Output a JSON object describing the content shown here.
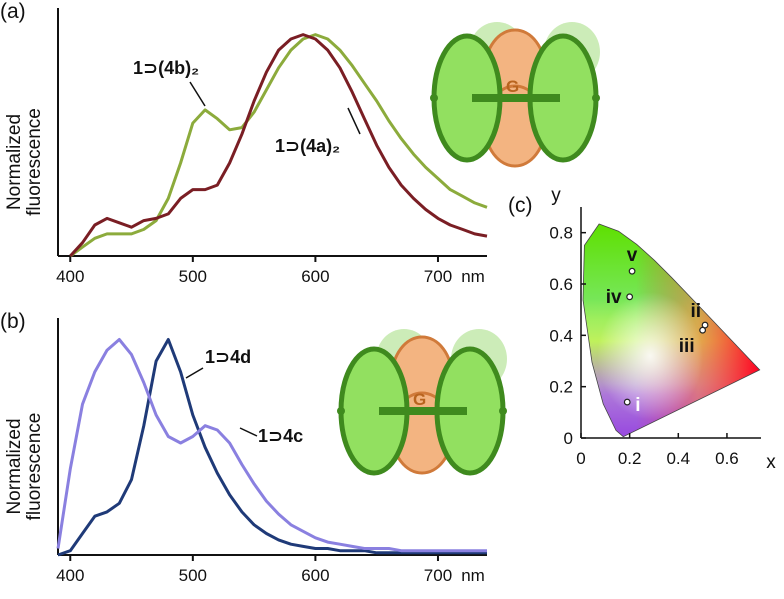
{
  "chart_data": [
    {
      "type": "line",
      "panel_label": "(a)",
      "y_label": [
        "Normalized",
        "fluorescence"
      ],
      "x_label": "nm",
      "inset_label": "G",
      "x": [
        400,
        410,
        420,
        430,
        440,
        450,
        460,
        470,
        480,
        490,
        500,
        510,
        520,
        530,
        540,
        550,
        560,
        570,
        580,
        590,
        600,
        610,
        620,
        630,
        640,
        650,
        660,
        670,
        680,
        690,
        700,
        710,
        720,
        730,
        740
      ],
      "xlim": [
        390,
        740
      ],
      "xticks": [
        400,
        500,
        600,
        700
      ],
      "ylim": [
        0,
        1.12
      ],
      "series": [
        {
          "name": "1⊃(4b)₂",
          "color": "#8cab3c",
          "values": [
            0,
            0.04,
            0.08,
            0.1,
            0.1,
            0.1,
            0.12,
            0.16,
            0.26,
            0.42,
            0.6,
            0.66,
            0.62,
            0.57,
            0.58,
            0.65,
            0.75,
            0.85,
            0.93,
            0.98,
            1.0,
            0.98,
            0.93,
            0.86,
            0.78,
            0.7,
            0.61,
            0.53,
            0.46,
            0.4,
            0.35,
            0.3,
            0.27,
            0.24,
            0.22
          ]
        },
        {
          "name": "1⊃(4a)₂",
          "color": "#7a1e24",
          "values": [
            0,
            0.06,
            0.14,
            0.17,
            0.15,
            0.13,
            0.16,
            0.17,
            0.19,
            0.26,
            0.3,
            0.3,
            0.32,
            0.42,
            0.55,
            0.7,
            0.83,
            0.93,
            0.98,
            1.0,
            0.98,
            0.93,
            0.85,
            0.74,
            0.62,
            0.5,
            0.4,
            0.32,
            0.26,
            0.21,
            0.17,
            0.14,
            0.12,
            0.1,
            0.09
          ]
        }
      ]
    },
    {
      "type": "line",
      "panel_label": "(b)",
      "y_label": [
        "Normalized",
        "fluorescence"
      ],
      "x_label": "nm",
      "inset_label": "G",
      "x": [
        390,
        400,
        410,
        420,
        430,
        440,
        450,
        460,
        470,
        480,
        490,
        500,
        510,
        520,
        530,
        540,
        550,
        560,
        570,
        580,
        590,
        600,
        610,
        620,
        630,
        640,
        650,
        660,
        670,
        680,
        690,
        700,
        710,
        720,
        730,
        740
      ],
      "xlim": [
        390,
        740
      ],
      "xticks": [
        400,
        500,
        600,
        700
      ],
      "ylim": [
        0,
        1.1
      ],
      "series": [
        {
          "name": "1⊃4d",
          "color": "#1f3a78",
          "values": [
            0,
            0.02,
            0.1,
            0.18,
            0.2,
            0.24,
            0.35,
            0.6,
            0.9,
            1.0,
            0.85,
            0.65,
            0.5,
            0.38,
            0.28,
            0.2,
            0.14,
            0.1,
            0.07,
            0.05,
            0.04,
            0.03,
            0.03,
            0.02,
            0.02,
            0.02,
            0.01,
            0.01,
            0.01,
            0.01,
            0.01,
            0.01,
            0.01,
            0.01,
            0.01,
            0.01
          ]
        },
        {
          "name": "1⊃4c",
          "color": "#8a80e0",
          "values": [
            0.03,
            0.4,
            0.7,
            0.85,
            0.95,
            1.0,
            0.93,
            0.8,
            0.65,
            0.55,
            0.52,
            0.55,
            0.6,
            0.58,
            0.52,
            0.42,
            0.33,
            0.25,
            0.19,
            0.14,
            0.11,
            0.08,
            0.06,
            0.05,
            0.04,
            0.03,
            0.03,
            0.03,
            0.02,
            0.02,
            0.02,
            0.02,
            0.02,
            0.02,
            0.02,
            0.02
          ]
        }
      ]
    },
    {
      "type": "scatter",
      "panel_label": "(c)",
      "x_label": "x",
      "y_label": "y",
      "x": [
        0.19,
        0.51,
        0.5,
        0.2,
        0.21
      ],
      "values": [
        0.14,
        0.44,
        0.42,
        0.55,
        0.65
      ],
      "labels": [
        "i",
        "ii",
        "iii",
        "iv",
        "v"
      ],
      "xlim": [
        0,
        0.74
      ],
      "ylim": [
        0,
        0.9
      ],
      "xticks": [
        0,
        0.2,
        0.4,
        0.6
      ],
      "yticks": [
        0,
        0.2,
        0.4,
        0.6,
        0.8
      ]
    }
  ]
}
